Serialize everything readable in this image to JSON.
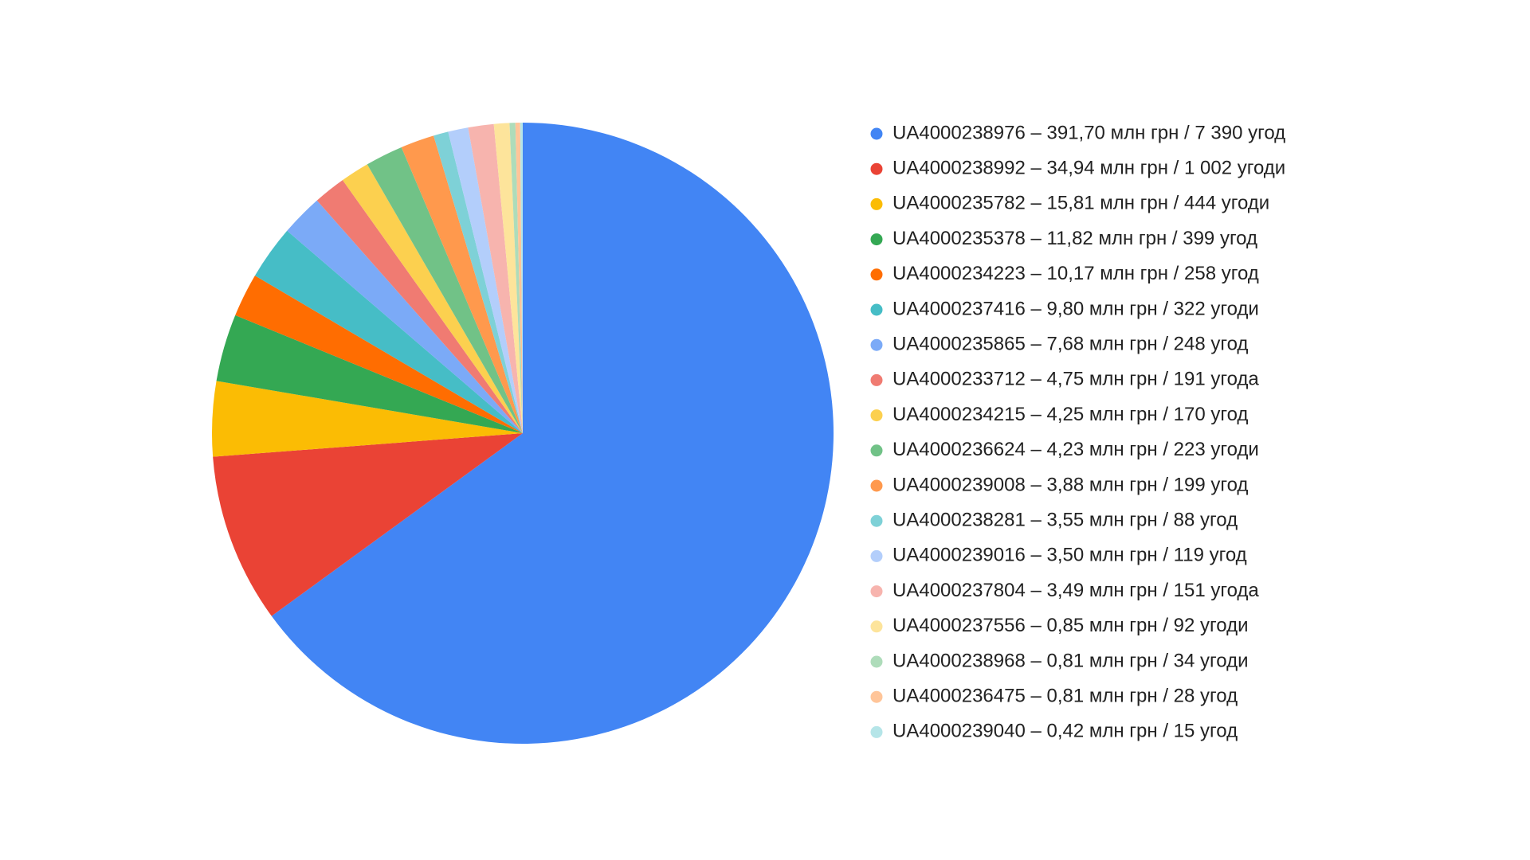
{
  "chart_data": {
    "type": "pie",
    "categories": [
      "UA4000238976 – 391,70 млн грн / 7 390 угод",
      "UA4000238992 – 34,94 млн грн / 1 002 угоди",
      "UA4000235782 – 15,81 млн грн / 444 угоди",
      "UA4000235378 – 11,82 млн грн / 399 угод",
      "UA4000234223 – 10,17 млн грн / 258 угод",
      "UA4000237416 – 9,80 млн грн / 322 угоди",
      "UA4000235865 – 7,68 млн грн / 248 угод",
      "UA4000233712 – 4,75 млн грн / 191 угода",
      "UA4000234215 – 4,25 млн грн / 170 угод",
      "UA4000236624 – 4,23 млн грн / 223 угоди",
      "UA4000239008 – 3,88 млн грн / 199 угод",
      "UA4000238281 – 3,55 млн грн / 88 угод",
      "UA4000239016 – 3,50 млн грн / 119 угод",
      "UA4000237804 – 3,49 млн грн / 151 угода",
      "UA4000237556 – 0,85 млн грн / 92 угоди",
      "UA4000238968 – 0,81 млн грн / 34 угоди",
      "UA4000236475 – 0,81 млн грн / 28 угод",
      "UA4000239040 – 0,42 млн грн / 15 угод"
    ],
    "values": [
      7390,
      1002,
      444,
      399,
      258,
      322,
      248,
      191,
      170,
      223,
      199,
      88,
      119,
      151,
      92,
      34,
      28,
      15
    ],
    "colors": [
      "#4285f4",
      "#ea4335",
      "#fbbc04",
      "#34a853",
      "#ff6d01",
      "#46bdc6",
      "#7baaf7",
      "#f07b72",
      "#fcd04f",
      "#71c287",
      "#ff994d",
      "#7ed1d7",
      "#b3cefb",
      "#f7b4ae",
      "#fde49b",
      "#aedcba",
      "#ffc599",
      "#b5e5e8"
    ],
    "legend": "right"
  }
}
